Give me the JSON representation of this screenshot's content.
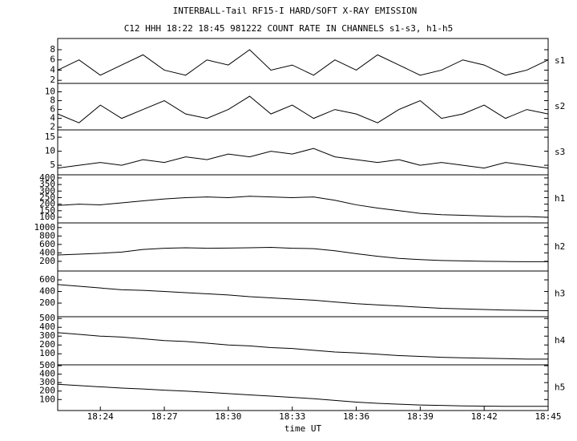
{
  "chart_data": {
    "type": "line",
    "title": "INTERBALL-Tail RF15-I HARD/SOFT X-RAY EMISSION",
    "subtitle": "C12 HHH 18:22 18:45 981222  COUNT RATE IN CHANNELS s1-s3, h1-h5",
    "xlabel": "time UT",
    "x": [
      "18:22",
      "18:23",
      "18:24",
      "18:25",
      "18:26",
      "18:27",
      "18:28",
      "18:29",
      "18:30",
      "18:31",
      "18:32",
      "18:33",
      "18:34",
      "18:35",
      "18:36",
      "18:37",
      "18:38",
      "18:39",
      "18:40",
      "18:41",
      "18:42",
      "18:43",
      "18:44",
      "18:45"
    ],
    "xticks": [
      "18:24",
      "18:27",
      "18:30",
      "18:33",
      "18:36",
      "18:39",
      "18:42",
      "18:45"
    ],
    "color": "#000000",
    "series": [
      {
        "name": "s1",
        "ylim": [
          1.4,
          10.2
        ],
        "yticks": [
          2,
          4,
          6,
          8
        ],
        "values": [
          4,
          6,
          3,
          5,
          7,
          4,
          3,
          6,
          5,
          8,
          4,
          5,
          3,
          6,
          4,
          7,
          5,
          3,
          4,
          6,
          5,
          3,
          4,
          6
        ]
      },
      {
        "name": "s2",
        "ylim": [
          1.4,
          11.9
        ],
        "yticks": [
          2,
          4,
          6,
          8,
          10
        ],
        "values": [
          5,
          3,
          7,
          4,
          6,
          8,
          5,
          4,
          6,
          9,
          5,
          7,
          4,
          6,
          5,
          3,
          6,
          8,
          4,
          5,
          7,
          4,
          6,
          5
        ]
      },
      {
        "name": "s3",
        "ylim": [
          1.6,
          17.6
        ],
        "yticks": [
          5,
          10,
          15
        ],
        "values": [
          4,
          5,
          6,
          5,
          7,
          6,
          8,
          7,
          9,
          8,
          10,
          9,
          11,
          8,
          7,
          6,
          7,
          5,
          6,
          5,
          4,
          6,
          5,
          4
        ]
      },
      {
        "name": "h1",
        "ylim": [
          57,
          424
        ],
        "yticks": [
          100,
          150,
          200,
          250,
          300,
          350,
          400
        ],
        "values": [
          190,
          200,
          195,
          210,
          225,
          240,
          250,
          255,
          250,
          260,
          255,
          250,
          255,
          230,
          195,
          170,
          150,
          130,
          120,
          115,
          110,
          105,
          105,
          100
        ]
      },
      {
        "name": "h2",
        "ylim": [
          -30,
          1110
        ],
        "yticks": [
          200,
          400,
          600,
          800,
          1000
        ],
        "values": [
          350,
          370,
          390,
          420,
          480,
          510,
          520,
          510,
          515,
          520,
          530,
          510,
          500,
          450,
          380,
          320,
          270,
          240,
          220,
          210,
          200,
          195,
          190,
          190
        ]
      },
      {
        "name": "h3",
        "ylim": [
          -34,
          752
        ],
        "yticks": [
          200,
          400,
          600
        ],
        "values": [
          520,
          490,
          460,
          430,
          420,
          400,
          380,
          360,
          340,
          310,
          290,
          270,
          250,
          220,
          190,
          170,
          150,
          130,
          110,
          100,
          90,
          80,
          75,
          70
        ]
      },
      {
        "name": "h4",
        "ylim": [
          -25,
          520
        ],
        "yticks": [
          100,
          200,
          300,
          400,
          500
        ],
        "values": [
          340,
          320,
          300,
          290,
          270,
          250,
          240,
          220,
          200,
          190,
          170,
          160,
          140,
          120,
          110,
          95,
          80,
          70,
          60,
          55,
          50,
          45,
          40,
          40
        ]
      },
      {
        "name": "h5",
        "ylim": [
          -30,
          510
        ],
        "yticks": [
          100,
          200,
          300,
          400,
          500
        ],
        "values": [
          280,
          265,
          250,
          235,
          225,
          210,
          200,
          185,
          170,
          155,
          140,
          125,
          110,
          90,
          70,
          55,
          45,
          35,
          30,
          25,
          22,
          20,
          20,
          20
        ]
      }
    ]
  }
}
